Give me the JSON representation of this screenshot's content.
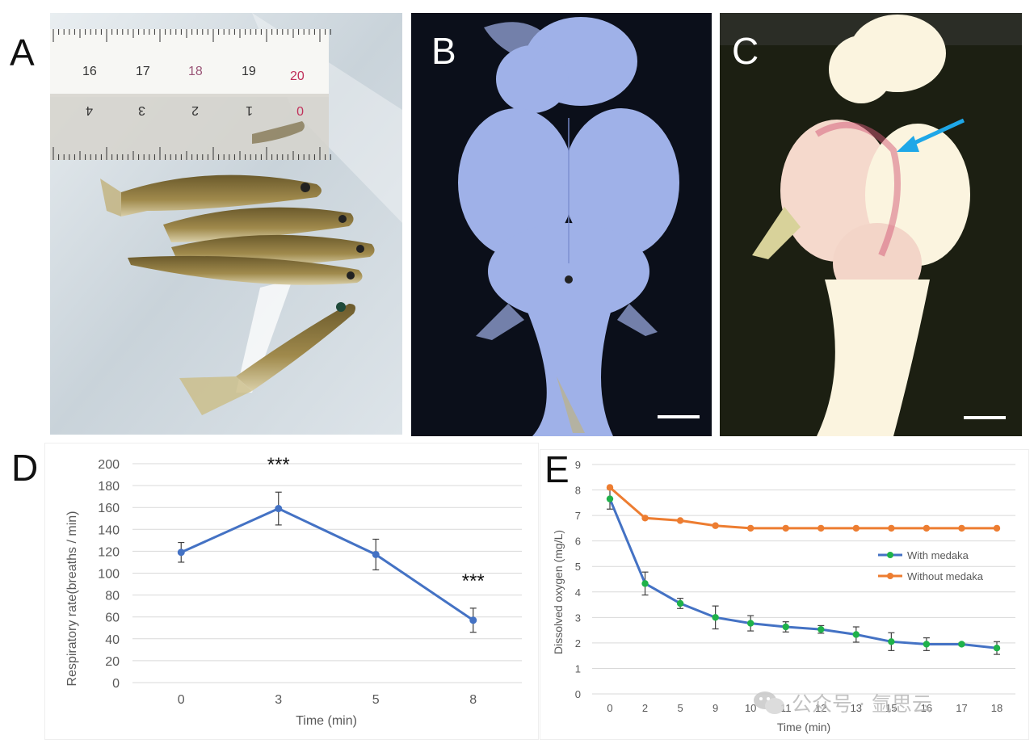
{
  "panels": {
    "a": {
      "letter": "A"
    },
    "b": {
      "letter": "B"
    },
    "c": {
      "letter": "C"
    },
    "d": {
      "letter": "D"
    },
    "e": {
      "letter": "E"
    }
  },
  "ruler": {
    "top_marks": [
      "16",
      "17",
      "18",
      "19",
      "20"
    ],
    "bottom_marks": [
      "4",
      "3",
      "2",
      "1",
      "0"
    ]
  },
  "colors": {
    "line_d": "#4472c4",
    "with_medaka": "#4472c4",
    "with_medaka_marker": "#1fb24a",
    "without_medaka": "#ed7d31",
    "grid": "#d9d9d9",
    "arrow": "#1ea7e8"
  },
  "chart_data": [
    {
      "type": "line",
      "panel": "D",
      "categories": [
        "0",
        "3",
        "5",
        "8"
      ],
      "series": [
        {
          "values": [
            119,
            159,
            117,
            57
          ],
          "errors": [
            9,
            15,
            14,
            11
          ]
        }
      ],
      "annotations": [
        {
          "category": "3",
          "text": "***"
        },
        {
          "category": "8",
          "text": "***"
        }
      ],
      "xlabel": "Time (min)",
      "ylabel": "Respiratory rate(breaths / min)",
      "ylim": [
        0,
        200
      ],
      "yticks": [
        "0",
        "20",
        "40",
        "60",
        "80",
        "100",
        "120",
        "140",
        "160",
        "180",
        "200"
      ],
      "grid": true
    },
    {
      "type": "line",
      "panel": "E",
      "categories": [
        "0",
        "2",
        "5",
        "9",
        "10",
        "11",
        "12",
        "13",
        "15",
        "16",
        "17",
        "18"
      ],
      "series": [
        {
          "name": "With medaka",
          "values": [
            7.65,
            4.33,
            3.55,
            3.0,
            2.77,
            2.63,
            2.53,
            2.33,
            2.05,
            1.95,
            1.95,
            1.8
          ],
          "errors": [
            0.4,
            0.45,
            0.2,
            0.45,
            0.3,
            0.2,
            0.15,
            0.3,
            0.35,
            0.25,
            0.05,
            0.25
          ]
        },
        {
          "name": "Without medaka",
          "values": [
            8.1,
            6.9,
            6.8,
            6.6,
            6.5,
            6.5,
            6.5,
            6.5,
            6.5,
            6.5,
            6.5,
            6.5
          ]
        }
      ],
      "xlabel": "Time (min)",
      "ylabel": "Dissolved oxygen (mg/L)",
      "ylim": [
        0,
        9
      ],
      "yticks": [
        "0",
        "1",
        "2",
        "3",
        "4",
        "5",
        "6",
        "7",
        "8",
        "9"
      ],
      "legend": "right",
      "grid": true
    }
  ],
  "watermark": {
    "text": "公众号 · 氩思云"
  }
}
